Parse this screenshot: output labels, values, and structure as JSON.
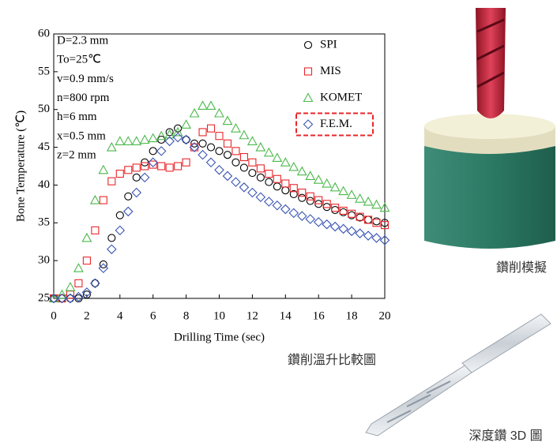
{
  "chart_data": {
    "type": "scatter",
    "xlabel": "Drilling Time (sec)",
    "ylabel": "Bone Temperature (℃)",
    "annotations": [
      "D=2.3 mm",
      "To=25℃",
      "v=0.9 mm/s",
      "n=800 rpm",
      "h=6 mm",
      "x=0.5 mm",
      "z=2 mm"
    ],
    "x": [
      0,
      0.5,
      1,
      1.5,
      2,
      2.5,
      3,
      3.5,
      4,
      4.5,
      5,
      5.5,
      6,
      6.5,
      7,
      7.5,
      8,
      8.5,
      9,
      9.5,
      10,
      10.5,
      11,
      11.5,
      12,
      12.5,
      13,
      13.5,
      14,
      14.5,
      15,
      15.5,
      16,
      16.5,
      17,
      17.5,
      18,
      18.5,
      19,
      19.5,
      20
    ],
    "series": [
      {
        "name": "SPI",
        "color": "#000000",
        "marker": "circle",
        "values": [
          25,
          25,
          25,
          25,
          25.5,
          27,
          29.5,
          33,
          36,
          38.5,
          41,
          43,
          44.5,
          46,
          47,
          47.5,
          46,
          45.5,
          45.5,
          45,
          44.5,
          44,
          43,
          42.3,
          41.6,
          41,
          40.4,
          39.8,
          39.3,
          38.8,
          38.3,
          37.9,
          37.5,
          37.1,
          36.7,
          36.4,
          36,
          35.7,
          35.4,
          35.2,
          35
        ]
      },
      {
        "name": "MIS",
        "color": "#e8262a",
        "marker": "square",
        "values": [
          25,
          25,
          25.5,
          27,
          30,
          34,
          38,
          40.5,
          41.5,
          42,
          42.3,
          42.5,
          42.7,
          42.5,
          42.3,
          42.5,
          43,
          45,
          47,
          47.5,
          46.5,
          45.5,
          44.5,
          43.7,
          43,
          42.2,
          41.5,
          40.8,
          40.2,
          39.6,
          39,
          38.5,
          38,
          37.5,
          37,
          36.6,
          36.2,
          35.8,
          35.4,
          35,
          34.7
        ]
      },
      {
        "name": "KOMET",
        "color": "#4bb84b",
        "marker": "triangle",
        "values": [
          25,
          25.5,
          26.5,
          29,
          33,
          38,
          42,
          45,
          45.8,
          45.8,
          45.8,
          46,
          46.2,
          46.5,
          46.7,
          47,
          48,
          49.5,
          50.5,
          50.5,
          49.5,
          48.5,
          47.5,
          46.6,
          45.8,
          45,
          44.3,
          43.6,
          43,
          42.4,
          41.8,
          41.2,
          40.7,
          40.2,
          39.7,
          39.2,
          38.7,
          38.2,
          37.8,
          37.4,
          37
        ]
      },
      {
        "name": "F.E.M.",
        "color": "#3a55b4",
        "marker": "diamond",
        "values": [
          25,
          25,
          25,
          25.2,
          25.8,
          27,
          29,
          31.5,
          34,
          36.5,
          39,
          41,
          43,
          44.5,
          45.8,
          46.3,
          46,
          45,
          44,
          43,
          42,
          41.2,
          40.4,
          39.7,
          39,
          38.4,
          37.8,
          37.3,
          36.8,
          36.3,
          35.9,
          35.5,
          35.1,
          34.8,
          34.5,
          34.2,
          33.9,
          33.6,
          33.3,
          33,
          32.7
        ]
      }
    ],
    "xlim": [
      0,
      20
    ],
    "xticks": [
      0,
      2,
      4,
      6,
      8,
      10,
      12,
      14,
      16,
      18,
      20
    ],
    "ylim": [
      25,
      60
    ],
    "yticks": [
      25,
      30,
      35,
      40,
      45,
      50,
      55,
      60
    ]
  },
  "captions": {
    "chart": "鑽削溫升比較圖",
    "simulation": "鑽削模擬",
    "drill_3d": "深度鑽 3D 圖"
  }
}
